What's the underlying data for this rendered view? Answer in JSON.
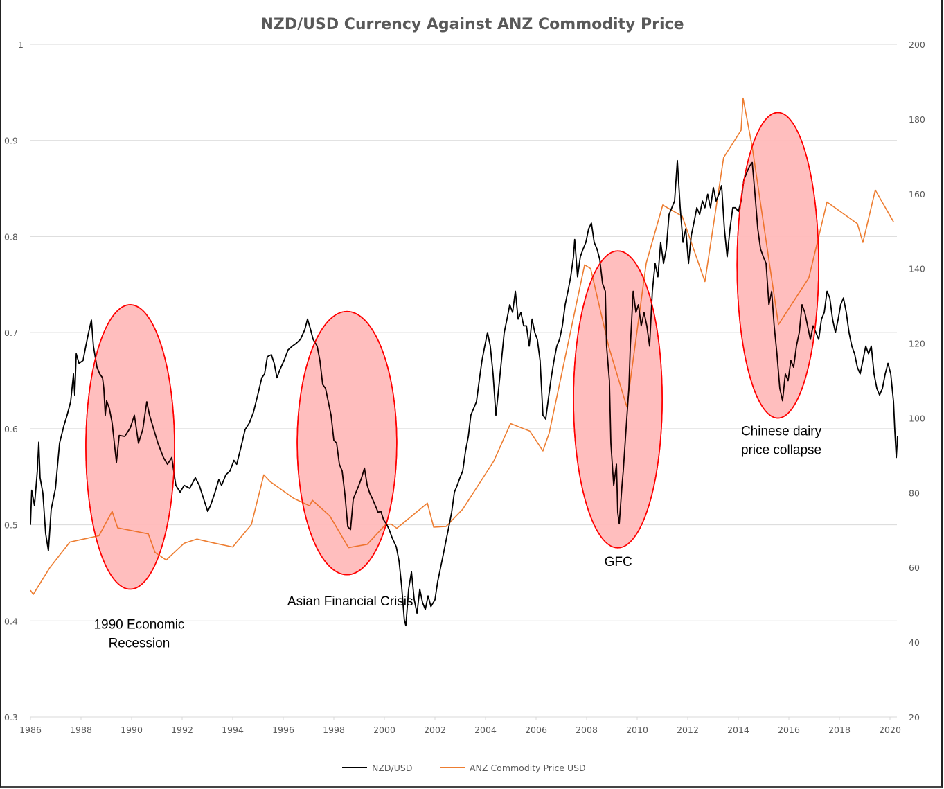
{
  "chart_data": {
    "type": "line",
    "title": "NZD/USD Currency Against ANZ Commodity Price",
    "xlabel": "",
    "ylabel_left": "",
    "ylabel_right": "",
    "xlim": [
      1986,
      2020.35
    ],
    "ylim_left": [
      0.3,
      1.0
    ],
    "ylim_right": [
      20,
      200
    ],
    "x_ticks": [
      "1986",
      "1988",
      "1990",
      "1992",
      "1994",
      "1996",
      "1998",
      "2000",
      "2002",
      "2004",
      "2006",
      "2008",
      "2010",
      "2012",
      "2014",
      "2016",
      "2018",
      "2020"
    ],
    "y_ticks_left": [
      "1",
      "0.9",
      "0.8",
      "0.7",
      "0.6",
      "0.5",
      "0.4",
      "0.3"
    ],
    "y_ticks_right": [
      "200",
      "180",
      "160",
      "140",
      "120",
      "100",
      "80",
      "60",
      "40",
      "20"
    ],
    "grid": true,
    "legend_position": "bottom",
    "colors": {
      "nzd": "#000000",
      "anz": "#ED7D31",
      "highlight_fill": "#FFCCCC",
      "highlight_stroke": "#FF0000",
      "grid": "#D9D9D9",
      "text": "#595959"
    },
    "series": [
      {
        "name": "NZD/USD",
        "axis": "left",
        "x": [
          1986.0,
          1986.05,
          1986.16,
          1986.27,
          1986.33,
          1986.38,
          1986.49,
          1986.6,
          1986.71,
          1986.82,
          1986.99,
          1987.15,
          1987.32,
          1987.45,
          1987.59,
          1987.7,
          1987.75,
          1987.81,
          1987.92,
          1988.08,
          1988.19,
          1988.3,
          1988.41,
          1988.49,
          1988.63,
          1988.74,
          1988.85,
          1988.9,
          1988.96,
          1989.01,
          1989.12,
          1989.23,
          1989.4,
          1989.51,
          1989.73,
          1989.95,
          1990.11,
          1990.27,
          1990.44,
          1990.6,
          1990.71,
          1990.88,
          1991.04,
          1991.26,
          1991.42,
          1991.59,
          1991.75,
          1991.92,
          1992.08,
          1992.3,
          1992.52,
          1992.68,
          1992.85,
          1993.01,
          1993.12,
          1993.29,
          1993.45,
          1993.56,
          1993.73,
          1993.89,
          1994.05,
          1994.16,
          1994.33,
          1994.49,
          1994.66,
          1994.82,
          1994.99,
          1995.15,
          1995.26,
          1995.37,
          1995.53,
          1995.64,
          1995.75,
          1995.86,
          1996.03,
          1996.19,
          1996.36,
          1996.52,
          1996.68,
          1996.85,
          1996.96,
          1997.07,
          1997.18,
          1997.34,
          1997.45,
          1997.56,
          1997.67,
          1997.78,
          1997.89,
          1998.0,
          1998.11,
          1998.22,
          1998.33,
          1998.44,
          1998.55,
          1998.66,
          1998.77,
          1998.88,
          1998.99,
          1999.1,
          1999.21,
          1999.32,
          1999.42,
          1999.53,
          1999.64,
          1999.75,
          1999.86,
          1999.97,
          2000.08,
          2000.19,
          2000.3,
          2000.47,
          2000.58,
          2000.68,
          2000.79,
          2000.85,
          2000.96,
          2001.07,
          2001.18,
          2001.29,
          2001.4,
          2001.51,
          2001.62,
          2001.73,
          2001.84,
          2002.0,
          2002.11,
          2002.22,
          2002.33,
          2002.44,
          2002.55,
          2002.66,
          2002.77,
          2002.88,
          2002.99,
          2003.1,
          2003.21,
          2003.32,
          2003.42,
          2003.53,
          2003.64,
          2003.75,
          2003.86,
          2003.97,
          2004.08,
          2004.19,
          2004.3,
          2004.41,
          2004.52,
          2004.63,
          2004.74,
          2004.85,
          2004.96,
          2005.07,
          2005.18,
          2005.29,
          2005.4,
          2005.51,
          2005.62,
          2005.73,
          2005.84,
          2005.95,
          2006.05,
          2006.16,
          2006.27,
          2006.38,
          2006.49,
          2006.6,
          2006.71,
          2006.82,
          2006.93,
          2007.04,
          2007.15,
          2007.26,
          2007.37,
          2007.48,
          2007.53,
          2007.64,
          2007.75,
          2007.86,
          2007.97,
          2008.08,
          2008.19,
          2008.3,
          2008.41,
          2008.52,
          2008.63,
          2008.74,
          2008.79,
          2008.9,
          2008.96,
          2009.07,
          2009.18,
          2009.23,
          2009.29,
          2009.4,
          2009.45,
          2009.56,
          2009.67,
          2009.73,
          2009.84,
          2009.95,
          2010.05,
          2010.16,
          2010.27,
          2010.38,
          2010.49,
          2010.6,
          2010.71,
          2010.82,
          2010.93,
          2011.04,
          2011.15,
          2011.26,
          2011.37,
          2011.48,
          2011.59,
          2011.7,
          2011.81,
          2011.92,
          2012.03,
          2012.14,
          2012.25,
          2012.36,
          2012.47,
          2012.58,
          2012.68,
          2012.79,
          2012.9,
          2013.01,
          2013.12,
          2013.23,
          2013.34,
          2013.45,
          2013.56,
          2013.67,
          2013.78,
          2013.89,
          2014.0,
          2014.11,
          2014.22,
          2014.33,
          2014.44,
          2014.55,
          2014.66,
          2014.77,
          2014.88,
          2014.99,
          2015.1,
          2015.21,
          2015.32,
          2015.42,
          2015.53,
          2015.64,
          2015.75,
          2015.86,
          2015.97,
          2016.08,
          2016.19,
          2016.3,
          2016.41,
          2016.52,
          2016.63,
          2016.74,
          2016.85,
          2016.96,
          2017.07,
          2017.18,
          2017.29,
          2017.4,
          2017.51,
          2017.62,
          2017.73,
          2017.84,
          2017.95,
          2018.05,
          2018.16,
          2018.27,
          2018.38,
          2018.49,
          2018.6,
          2018.71,
          2018.82,
          2018.93,
          2019.04,
          2019.15,
          2019.26,
          2019.37,
          2019.48,
          2019.59,
          2019.7,
          2019.81,
          2019.92,
          2020.03,
          2020.14,
          2020.19,
          2020.25,
          2020.3
        ],
        "values": [
          0.5,
          0.536,
          0.52,
          0.556,
          0.586,
          0.549,
          0.533,
          0.491,
          0.473,
          0.516,
          0.538,
          0.585,
          0.603,
          0.614,
          0.628,
          0.657,
          0.635,
          0.678,
          0.668,
          0.671,
          0.686,
          0.7,
          0.713,
          0.686,
          0.664,
          0.657,
          0.653,
          0.642,
          0.614,
          0.629,
          0.621,
          0.606,
          0.565,
          0.593,
          0.592,
          0.601,
          0.614,
          0.585,
          0.599,
          0.628,
          0.614,
          0.599,
          0.585,
          0.57,
          0.563,
          0.57,
          0.541,
          0.534,
          0.541,
          0.538,
          0.549,
          0.541,
          0.527,
          0.514,
          0.52,
          0.533,
          0.547,
          0.541,
          0.552,
          0.556,
          0.567,
          0.563,
          0.581,
          0.599,
          0.606,
          0.617,
          0.635,
          0.653,
          0.657,
          0.675,
          0.677,
          0.668,
          0.653,
          0.661,
          0.671,
          0.682,
          0.686,
          0.689,
          0.693,
          0.703,
          0.714,
          0.704,
          0.693,
          0.686,
          0.671,
          0.646,
          0.642,
          0.628,
          0.614,
          0.588,
          0.585,
          0.563,
          0.556,
          0.531,
          0.498,
          0.495,
          0.527,
          0.534,
          0.541,
          0.549,
          0.559,
          0.541,
          0.533,
          0.527,
          0.52,
          0.513,
          0.514,
          0.505,
          0.501,
          0.495,
          0.487,
          0.477,
          0.462,
          0.437,
          0.401,
          0.395,
          0.433,
          0.451,
          0.422,
          0.408,
          0.433,
          0.419,
          0.412,
          0.426,
          0.415,
          0.422,
          0.441,
          0.455,
          0.469,
          0.484,
          0.498,
          0.513,
          0.534,
          0.541,
          0.549,
          0.556,
          0.577,
          0.592,
          0.614,
          0.621,
          0.628,
          0.65,
          0.671,
          0.686,
          0.7,
          0.686,
          0.657,
          0.614,
          0.642,
          0.671,
          0.7,
          0.714,
          0.729,
          0.721,
          0.743,
          0.714,
          0.721,
          0.707,
          0.707,
          0.686,
          0.714,
          0.7,
          0.693,
          0.671,
          0.614,
          0.61,
          0.632,
          0.653,
          0.671,
          0.686,
          0.693,
          0.707,
          0.729,
          0.743,
          0.758,
          0.779,
          0.797,
          0.758,
          0.779,
          0.787,
          0.794,
          0.808,
          0.814,
          0.794,
          0.787,
          0.776,
          0.751,
          0.743,
          0.686,
          0.65,
          0.585,
          0.541,
          0.563,
          0.513,
          0.501,
          0.541,
          0.556,
          0.599,
          0.642,
          0.686,
          0.743,
          0.721,
          0.729,
          0.707,
          0.721,
          0.707,
          0.686,
          0.743,
          0.772,
          0.758,
          0.794,
          0.772,
          0.787,
          0.823,
          0.83,
          0.837,
          0.879,
          0.83,
          0.794,
          0.808,
          0.772,
          0.801,
          0.815,
          0.83,
          0.823,
          0.837,
          0.83,
          0.844,
          0.83,
          0.851,
          0.837,
          0.844,
          0.853,
          0.808,
          0.779,
          0.808,
          0.83,
          0.83,
          0.826,
          0.837,
          0.859,
          0.866,
          0.873,
          0.877,
          0.844,
          0.808,
          0.787,
          0.779,
          0.772,
          0.729,
          0.743,
          0.707,
          0.678,
          0.642,
          0.629,
          0.657,
          0.65,
          0.671,
          0.664,
          0.686,
          0.7,
          0.729,
          0.721,
          0.707,
          0.693,
          0.707,
          0.7,
          0.693,
          0.714,
          0.721,
          0.743,
          0.736,
          0.714,
          0.7,
          0.714,
          0.729,
          0.736,
          0.721,
          0.7,
          0.686,
          0.678,
          0.664,
          0.657,
          0.671,
          0.686,
          0.678,
          0.686,
          0.657,
          0.642,
          0.635,
          0.642,
          0.657,
          0.668,
          0.657,
          0.628,
          0.599,
          0.57,
          0.592
        ]
      },
      {
        "name": "ANZ Commodity Price USD",
        "axis": "right",
        "x": [
          1986.0,
          1986.11,
          1986.77,
          1987.56,
          1988.71,
          1989.23,
          1989.45,
          1990.66,
          1990.93,
          1991.37,
          1992.08,
          1992.58,
          1993.29,
          1994.0,
          1994.74,
          1995.23,
          1995.48,
          1996.41,
          1997.04,
          1997.15,
          1997.84,
          1998.58,
          1999.32,
          2000.05,
          2000.27,
          2000.49,
          2001.7,
          2001.95,
          2002.44,
          2003.1,
          2004.33,
          2004.99,
          2005.75,
          2006.27,
          2006.52,
          2007.92,
          2008.16,
          2008.88,
          2009.59,
          2010.36,
          2011.01,
          2011.78,
          2012.68,
          2013.42,
          2014.11,
          2014.19,
          2014.55,
          2015.59,
          2016.79,
          2017.51,
          2018.71,
          2018.93,
          2019.42,
          2020.14
        ],
        "values": [
          53.9,
          52.8,
          60.0,
          66.8,
          68.5,
          75.0,
          70.6,
          69.0,
          64.0,
          62.0,
          66.5,
          67.6,
          66.5,
          65.5,
          71.5,
          84.8,
          83.0,
          78.5,
          76.5,
          78.0,
          73.8,
          65.3,
          66.2,
          71.5,
          71.6,
          70.5,
          77.2,
          70.8,
          71.0,
          75.6,
          88.5,
          98.5,
          96.5,
          91.2,
          96.0,
          141.0,
          140.0,
          119.0,
          103.0,
          141.5,
          157.0,
          154.0,
          136.5,
          169.7,
          177.0,
          185.6,
          172.5,
          125.0,
          137.5,
          157.8,
          152.0,
          147.0,
          161.0,
          152.5
        ]
      }
    ],
    "highlights": [
      {
        "label": "1990 Economic Recession",
        "lines": [
          "1990 Economic",
          "Recession"
        ],
        "x_range": [
          1988.19,
          1991.7
        ],
        "y_range": [
          0.433,
          0.729
        ],
        "label_anchor": [
          1990.3,
          0.392
        ]
      },
      {
        "label": "Asian Financial Crisis",
        "lines": [
          "Asian Financial Crisis"
        ],
        "x_range": [
          1996.55,
          2000.49
        ],
        "y_range": [
          0.448,
          0.722
        ],
        "label_anchor": [
          1998.65,
          0.416
        ]
      },
      {
        "label": "GFC",
        "lines": [
          "GFC"
        ],
        "x_range": [
          2007.48,
          2010.99
        ],
        "y_range": [
          0.476,
          0.785
        ],
        "label_anchor": [
          2009.25,
          0.457
        ]
      },
      {
        "label": "Chinese dairy price collapse",
        "lines": [
          "Chinese dairy",
          "price collapse"
        ],
        "x_range": [
          2013.95,
          2017.18
        ],
        "y_range": [
          0.611,
          0.929
        ],
        "label_anchor": [
          2015.7,
          0.593
        ]
      }
    ],
    "legend": [
      {
        "name": "NZD/USD",
        "color": "#000000"
      },
      {
        "name": "ANZ Commodity Price USD",
        "color": "#ED7D31"
      }
    ]
  }
}
